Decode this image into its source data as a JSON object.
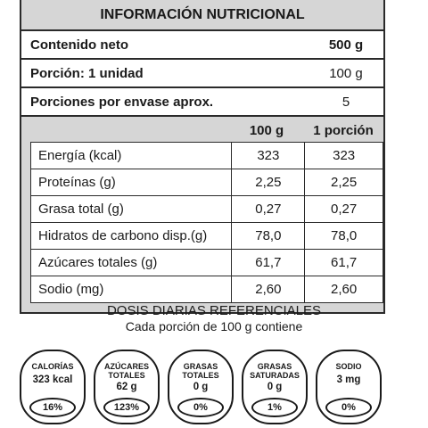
{
  "panel": {
    "title": "INFORMACIÓN NUTRICIONAL",
    "header_rows": [
      {
        "label": "Contenido neto",
        "value": "500 g"
      },
      {
        "label": "Porción: 1 unidad",
        "value": "100 g"
      },
      {
        "label": "Porciones por envase aprox.",
        "value": "5"
      }
    ],
    "columns": [
      "100 g",
      "1 porción"
    ],
    "rows": [
      {
        "name": "Energía (kcal)",
        "v100": "323",
        "vpor": "323"
      },
      {
        "name": "Proteínas (g)",
        "v100": "2,25",
        "vpor": "2,25"
      },
      {
        "name": "Grasa total (g)",
        "v100": "0,27",
        "vpor": "0,27"
      },
      {
        "name": "Hidratos de carbono disp.(g)",
        "v100": "78,0",
        "vpor": "78,0"
      },
      {
        "name": "Azúcares totales (g)",
        "v100": "61,7",
        "vpor": "61,7"
      },
      {
        "name": "Sodio (mg)",
        "v100": "2,60",
        "vpor": "2,60"
      }
    ]
  },
  "dosis": {
    "title": "DOSIS DIARIAS REFERENCIALES",
    "subtitle": "Cada porción de 100 g contiene"
  },
  "badges": [
    {
      "label_lines": [
        "CALORÍAS"
      ],
      "value": "323 kcal",
      "percent": "16%"
    },
    {
      "label_lines": [
        "AZÚCARES",
        "TOTALES"
      ],
      "value": "62 g",
      "percent": "123%"
    },
    {
      "label_lines": [
        "GRASAS",
        "TOTALES"
      ],
      "value": "0 g",
      "percent": "0%"
    },
    {
      "label_lines": [
        "GRASAS",
        "SATURADAS"
      ],
      "value": "0 g",
      "percent": "1%"
    },
    {
      "label_lines": [
        "SODIO"
      ],
      "value": "3 mg",
      "percent": "0%"
    }
  ]
}
